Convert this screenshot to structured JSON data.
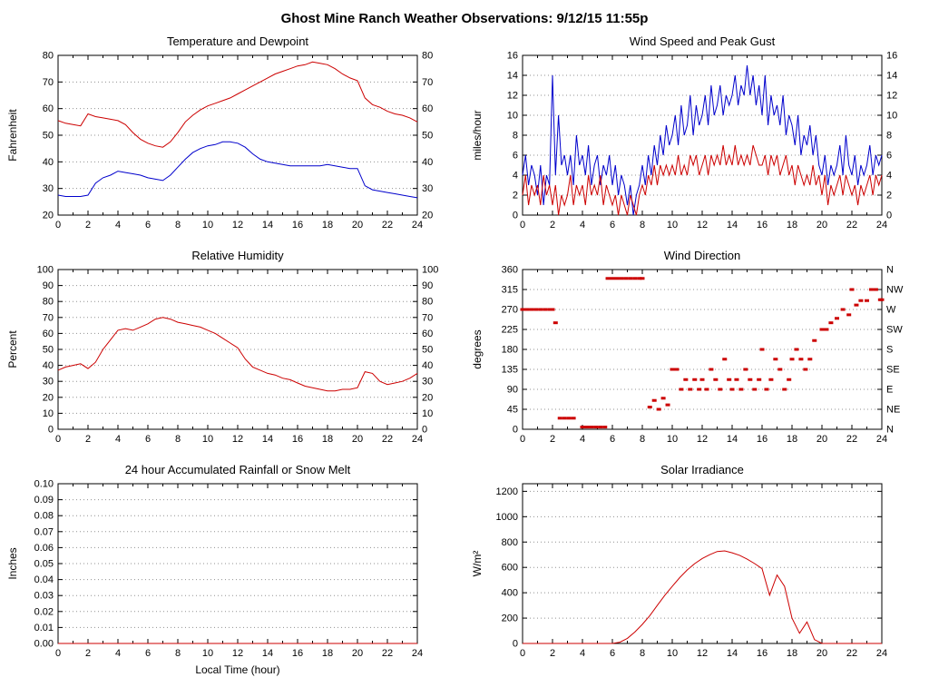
{
  "header": {
    "title": "Ghost Mine Ranch Weather Observations: 9/12/15 11:55p"
  },
  "colors": {
    "red": "#cc0000",
    "blue": "#0000cc"
  },
  "chart_data": [
    {
      "id": "temperature-dewpoint",
      "type": "line",
      "title": "Temperature and Dewpoint",
      "ylabel": "Fahrenheit",
      "xlabel": "",
      "xlim": [
        0,
        24
      ],
      "ylim": [
        20,
        80
      ],
      "xticks": [
        0,
        2,
        4,
        6,
        8,
        10,
        12,
        14,
        16,
        18,
        20,
        22,
        24
      ],
      "yticks": [
        20,
        30,
        40,
        50,
        60,
        70,
        80
      ],
      "right_labels": "mirror",
      "grid": true,
      "legend_position": "none",
      "series": [
        {
          "name": "temperature",
          "color": "red",
          "type": "line",
          "x0": 0,
          "dx": 0.5,
          "y": [
            55.5,
            54.5,
            54,
            53.5,
            58,
            57,
            56.5,
            56,
            55.5,
            54,
            51,
            48.5,
            47,
            46,
            45.5,
            47.5,
            51,
            55,
            57.5,
            59.5,
            61,
            62,
            63,
            64,
            65.5,
            67,
            68.5,
            70,
            71.5,
            73,
            74,
            75,
            76,
            76.5,
            77.5,
            77,
            76.5,
            75,
            73,
            71.5,
            70.5,
            64,
            61.5,
            60.5,
            59,
            58,
            57.5,
            56.5,
            55
          ]
        },
        {
          "name": "dewpoint",
          "color": "blue",
          "type": "line",
          "x0": 0,
          "dx": 0.5,
          "y": [
            27.5,
            27,
            27,
            27,
            27.5,
            32,
            34,
            35,
            36.5,
            36,
            35.5,
            35,
            34,
            33.5,
            33,
            35,
            38,
            41,
            43.5,
            45,
            46,
            46.5,
            47.5,
            47.5,
            47,
            45.5,
            43,
            41,
            40,
            39.5,
            39,
            38.5,
            38.5,
            38.5,
            38.5,
            38.5,
            39,
            38.5,
            38,
            37.5,
            37.5,
            31,
            29.5,
            29,
            28.5,
            28,
            27.5,
            27,
            26.5
          ]
        }
      ]
    },
    {
      "id": "wind-speed-peak-gust",
      "type": "line",
      "title": "Wind Speed and Peak Gust",
      "ylabel": "miles/hour",
      "xlabel": "",
      "xlim": [
        0,
        24
      ],
      "ylim": [
        0,
        16
      ],
      "xticks": [
        0,
        2,
        4,
        6,
        8,
        10,
        12,
        14,
        16,
        18,
        20,
        22,
        24
      ],
      "yticks": [
        0,
        2,
        4,
        6,
        8,
        10,
        12,
        14,
        16
      ],
      "right_labels": "mirror",
      "grid": true,
      "legend_position": "none",
      "series": [
        {
          "name": "peak-gust",
          "color": "blue",
          "type": "line",
          "x0": 0,
          "dx": 0.2,
          "y": [
            4,
            6,
            3,
            5,
            4,
            2,
            5,
            1,
            4,
            3,
            14,
            4,
            10,
            5,
            6,
            4,
            6,
            3,
            8,
            5,
            6,
            4,
            7,
            3,
            5,
            6,
            3,
            5,
            4,
            6,
            3,
            5,
            2,
            4,
            3,
            1,
            3,
            0,
            2,
            3,
            5,
            3,
            6,
            4,
            7,
            5,
            8,
            6,
            9,
            7,
            8,
            10,
            7,
            11,
            8,
            9,
            12,
            8,
            11,
            9,
            10,
            12,
            9,
            13,
            10,
            11,
            13,
            10,
            12,
            11,
            12,
            14,
            11,
            13,
            12,
            15,
            12,
            14,
            11,
            13,
            10,
            14,
            9,
            12,
            10,
            11,
            9,
            12,
            8,
            10,
            9,
            7,
            10,
            6,
            8,
            7,
            9,
            6,
            8,
            5,
            4,
            6,
            3,
            5,
            4,
            5,
            7,
            4,
            8,
            5,
            4,
            6,
            3,
            5,
            4,
            5,
            7,
            4,
            6,
            5,
            6
          ]
        },
        {
          "name": "wind-speed",
          "color": "red",
          "type": "line",
          "x0": 0,
          "dx": 0.2,
          "y": [
            2,
            4,
            1,
            3,
            2,
            3,
            1,
            4,
            2,
            3,
            1,
            3,
            0,
            2,
            1,
            2,
            4,
            1,
            3,
            2,
            3,
            1,
            4,
            2,
            3,
            2,
            4,
            1,
            3,
            2,
            1,
            2,
            0,
            2,
            1,
            0,
            2,
            1,
            0,
            2,
            3,
            2,
            4,
            3,
            5,
            3,
            5,
            4,
            5,
            4,
            5,
            4,
            6,
            4,
            5,
            4,
            6,
            5,
            6,
            4,
            5,
            6,
            4,
            6,
            5,
            6,
            5,
            7,
            5,
            6,
            5,
            7,
            5,
            6,
            5,
            6,
            5,
            7,
            6,
            5,
            5,
            6,
            4,
            6,
            5,
            6,
            4,
            5,
            6,
            4,
            5,
            3,
            5,
            4,
            3,
            4,
            3,
            5,
            3,
            4,
            2,
            4,
            1,
            3,
            2,
            3,
            4,
            2,
            4,
            3,
            2,
            3,
            1,
            3,
            2,
            3,
            4,
            2,
            4,
            3,
            4
          ]
        }
      ]
    },
    {
      "id": "relative-humidity",
      "type": "line",
      "title": "Relative Humidity",
      "ylabel": "Percent",
      "xlabel": "",
      "xlim": [
        0,
        24
      ],
      "ylim": [
        0,
        100
      ],
      "xticks": [
        0,
        2,
        4,
        6,
        8,
        10,
        12,
        14,
        16,
        18,
        20,
        22,
        24
      ],
      "yticks": [
        0,
        10,
        20,
        30,
        40,
        50,
        60,
        70,
        80,
        90,
        100
      ],
      "right_labels": "mirror",
      "grid": true,
      "legend_position": "none",
      "series": [
        {
          "name": "humidity",
          "color": "red",
          "type": "line",
          "x0": 0,
          "dx": 0.5,
          "y": [
            37,
            39,
            40,
            41,
            38,
            42,
            50,
            56,
            62,
            63,
            62,
            64,
            66,
            69,
            70,
            69,
            67,
            66,
            65,
            64,
            62,
            60,
            57,
            54,
            51,
            44,
            39,
            37,
            35,
            34,
            32,
            31,
            29,
            27,
            26,
            25,
            24,
            24,
            25,
            25,
            26,
            36,
            35,
            30,
            28,
            29,
            30,
            32,
            35
          ]
        }
      ]
    },
    {
      "id": "wind-direction",
      "type": "scatter",
      "title": "Wind Direction",
      "ylabel": "degrees",
      "xlabel": "",
      "xlim": [
        0,
        24
      ],
      "ylim": [
        0,
        360
      ],
      "xticks": [
        0,
        2,
        4,
        6,
        8,
        10,
        12,
        14,
        16,
        18,
        20,
        22,
        24
      ],
      "yticks": [
        0,
        45,
        90,
        135,
        180,
        225,
        270,
        315,
        360
      ],
      "right_labels": [
        "N",
        "NE",
        "E",
        "SE",
        "S",
        "SW",
        "W",
        "NW",
        "N"
      ],
      "grid": true,
      "legend_position": "none",
      "series": [
        {
          "name": "direction",
          "color": "red",
          "type": "scatter",
          "points": [
            [
              0,
              270
            ],
            [
              0.3,
              270
            ],
            [
              0.6,
              270
            ],
            [
              0.9,
              270
            ],
            [
              1.2,
              270
            ],
            [
              1.5,
              270
            ],
            [
              1.8,
              270
            ],
            [
              2,
              270
            ],
            [
              2.2,
              240
            ],
            [
              2.5,
              25
            ],
            [
              2.8,
              25
            ],
            [
              3.1,
              25
            ],
            [
              3.4,
              25
            ],
            [
              4,
              5
            ],
            [
              4.3,
              5
            ],
            [
              4.6,
              5
            ],
            [
              4.9,
              5
            ],
            [
              5.2,
              5
            ],
            [
              5.5,
              5
            ],
            [
              5.7,
              340
            ],
            [
              6,
              340
            ],
            [
              6.3,
              340
            ],
            [
              6.6,
              340
            ],
            [
              6.9,
              340
            ],
            [
              7.2,
              340
            ],
            [
              7.5,
              340
            ],
            [
              7.8,
              340
            ],
            [
              8,
              340
            ],
            [
              8.5,
              50
            ],
            [
              8.8,
              65
            ],
            [
              9.1,
              45
            ],
            [
              9.4,
              70
            ],
            [
              9.7,
              55
            ],
            [
              10,
              135
            ],
            [
              10.3,
              135
            ],
            [
              10.6,
              90
            ],
            [
              10.9,
              112
            ],
            [
              11.2,
              90
            ],
            [
              11.5,
              112
            ],
            [
              11.8,
              90
            ],
            [
              12,
              112
            ],
            [
              12.3,
              90
            ],
            [
              12.6,
              135
            ],
            [
              12.9,
              112
            ],
            [
              13.2,
              90
            ],
            [
              13.5,
              158
            ],
            [
              13.8,
              112
            ],
            [
              14,
              90
            ],
            [
              14.3,
              112
            ],
            [
              14.6,
              90
            ],
            [
              14.9,
              135
            ],
            [
              15.2,
              112
            ],
            [
              15.5,
              90
            ],
            [
              15.8,
              112
            ],
            [
              16,
              180
            ],
            [
              16.3,
              90
            ],
            [
              16.6,
              112
            ],
            [
              16.9,
              158
            ],
            [
              17.2,
              135
            ],
            [
              17.5,
              90
            ],
            [
              17.8,
              112
            ],
            [
              18,
              158
            ],
            [
              18.3,
              180
            ],
            [
              18.6,
              158
            ],
            [
              18.9,
              135
            ],
            [
              19.2,
              158
            ],
            [
              19.5,
              200
            ],
            [
              20,
              225
            ],
            [
              20.3,
              225
            ],
            [
              20.6,
              240
            ],
            [
              21,
              250
            ],
            [
              21.4,
              270
            ],
            [
              21.8,
              258
            ],
            [
              22,
              315
            ],
            [
              22.3,
              280
            ],
            [
              22.6,
              290
            ],
            [
              23,
              290
            ],
            [
              23.3,
              315
            ],
            [
              23.6,
              315
            ],
            [
              23.9,
              292
            ],
            [
              24,
              292
            ]
          ]
        }
      ]
    },
    {
      "id": "rainfall",
      "type": "line",
      "title": "24 hour Accumulated Rainfall or Snow Melt",
      "ylabel": "Inches",
      "xlabel": "Local Time (hour)",
      "xlim": [
        0,
        24
      ],
      "ylim": [
        0,
        0.1
      ],
      "xticks": [
        0,
        2,
        4,
        6,
        8,
        10,
        12,
        14,
        16,
        18,
        20,
        22,
        24
      ],
      "yticks": [
        0,
        0.01,
        0.02,
        0.03,
        0.04,
        0.05,
        0.06,
        0.07,
        0.08,
        0.09,
        0.1
      ],
      "yticklabels": [
        "0.00",
        "0.01",
        "0.02",
        "0.03",
        "0.04",
        "0.05",
        "0.06",
        "0.07",
        "0.08",
        "0.09",
        "0.10"
      ],
      "right_labels": null,
      "grid": true,
      "legend_position": "none",
      "series": [
        {
          "name": "rainfall",
          "color": "red",
          "type": "line",
          "points": [
            [
              0,
              0
            ],
            [
              24,
              0
            ]
          ]
        }
      ]
    },
    {
      "id": "solar-irradiance",
      "type": "line",
      "title": "Solar Irradiance",
      "ylabel": "W/m²",
      "xlabel": "",
      "xlim": [
        0,
        24
      ],
      "ylim": [
        0,
        1260
      ],
      "xticks": [
        0,
        2,
        4,
        6,
        8,
        10,
        12,
        14,
        16,
        18,
        20,
        22,
        24
      ],
      "yticks": [
        0,
        200,
        400,
        600,
        800,
        1000,
        1200
      ],
      "right_labels": null,
      "grid": true,
      "legend_position": "none",
      "series": [
        {
          "name": "irradiance",
          "color": "red",
          "type": "line",
          "x0": 0,
          "dx": 0.5,
          "y": [
            0,
            0,
            0,
            0,
            0,
            0,
            0,
            0,
            0,
            0,
            0,
            0,
            0,
            10,
            40,
            90,
            150,
            220,
            300,
            380,
            450,
            520,
            580,
            630,
            670,
            700,
            725,
            730,
            715,
            695,
            665,
            630,
            590,
            380,
            540,
            450,
            200,
            80,
            170,
            30,
            0,
            0,
            0,
            0,
            0,
            0,
            0,
            0,
            0
          ]
        }
      ]
    }
  ]
}
